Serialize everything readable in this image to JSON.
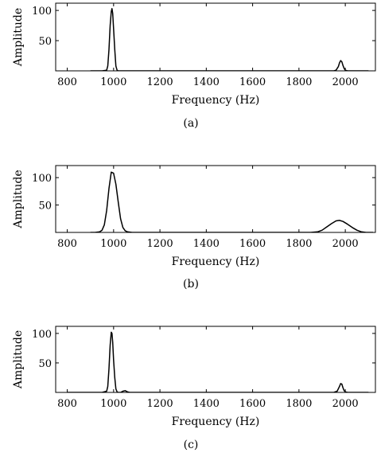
{
  "chart_data": [
    {
      "type": "line",
      "subplot_label": "(a)",
      "xlabel": "Frequency (Hz)",
      "ylabel": "Amplitude",
      "xlim": [
        750,
        2130
      ],
      "ylim": [
        0,
        112
      ],
      "xticks": [
        "800",
        "1000",
        "1200",
        "1400",
        "1600",
        "1800",
        "2000"
      ],
      "xtick_values": [
        800,
        1000,
        1200,
        1400,
        1600,
        1800,
        2000
      ],
      "yticks": [
        "50",
        "100"
      ],
      "ytick_values": [
        50,
        100
      ],
      "series": [
        {
          "x": [
            900,
            950,
            970,
            975,
            980,
            985,
            990,
            993,
            996,
            1000,
            1005,
            1010,
            1015,
            1020,
            1040,
            1100,
            1900,
            1950,
            1960,
            1970,
            1975,
            1980,
            1985,
            1990,
            1995,
            2000,
            2010,
            2050,
            2100
          ],
          "y": [
            0,
            0,
            1,
            8,
            35,
            75,
            98,
            103,
            95,
            70,
            35,
            8,
            1,
            0,
            0,
            0,
            0,
            0,
            1,
            7,
            13,
            17,
            15,
            9,
            4,
            1,
            0,
            0,
            0
          ]
        }
      ]
    },
    {
      "type": "line",
      "subplot_label": "(b)",
      "xlabel": "Frequency (Hz)",
      "ylabel": "Amplitude",
      "xlim": [
        750,
        2130
      ],
      "ylim": [
        0,
        122
      ],
      "xticks": [
        "800",
        "1000",
        "1200",
        "1400",
        "1600",
        "1800",
        "2000"
      ],
      "xtick_values": [
        800,
        1000,
        1200,
        1400,
        1600,
        1800,
        2000
      ],
      "yticks": [
        "50",
        "100"
      ],
      "yticks_values": [
        50,
        100
      ],
      "ytick_values": [
        50,
        100
      ],
      "series": [
        {
          "x": [
            900,
            920,
            940,
            950,
            960,
            970,
            980,
            990,
            1000,
            1010,
            1020,
            1030,
            1040,
            1050,
            1060,
            1080,
            1100,
            1850,
            1880,
            1900,
            1920,
            1940,
            1960,
            1975,
            1990,
            2010,
            2030,
            2050,
            2070,
            2090,
            2120
          ],
          "y": [
            0,
            0,
            1,
            4,
            14,
            40,
            80,
            110,
            108,
            88,
            55,
            25,
            9,
            3,
            1,
            0,
            0,
            0,
            1,
            4,
            10,
            16,
            21,
            22,
            20,
            15,
            9,
            4,
            1,
            0,
            0
          ]
        }
      ]
    },
    {
      "type": "line",
      "subplot_label": "(c)",
      "xlabel": "Frequency (Hz)",
      "ylabel": "Amplitude",
      "xlim": [
        750,
        2130
      ],
      "ylim": [
        0,
        112
      ],
      "xticks": [
        "800",
        "1000",
        "1200",
        "1400",
        "1600",
        "1800",
        "2000"
      ],
      "xtick_values": [
        800,
        1000,
        1200,
        1400,
        1600,
        1800,
        2000
      ],
      "yticks": [
        "50",
        "100"
      ],
      "ytick_values": [
        50,
        100
      ],
      "series": [
        {
          "x": [
            800,
            900,
            950,
            970,
            975,
            980,
            985,
            990,
            993,
            996,
            1000,
            1005,
            1010,
            1015,
            1020,
            1030,
            1040,
            1050,
            1060,
            1070,
            1100,
            1900,
            1950,
            1965,
            1975,
            1980,
            1985,
            1990,
            1995,
            2000,
            2010,
            2050,
            2100
          ],
          "y": [
            0,
            0,
            0,
            2,
            10,
            40,
            80,
            102,
            100,
            85,
            55,
            25,
            6,
            1,
            0,
            0,
            2,
            3,
            1,
            0,
            0,
            0,
            0,
            2,
            10,
            15,
            14,
            8,
            3,
            1,
            0,
            0,
            0
          ]
        }
      ]
    }
  ]
}
